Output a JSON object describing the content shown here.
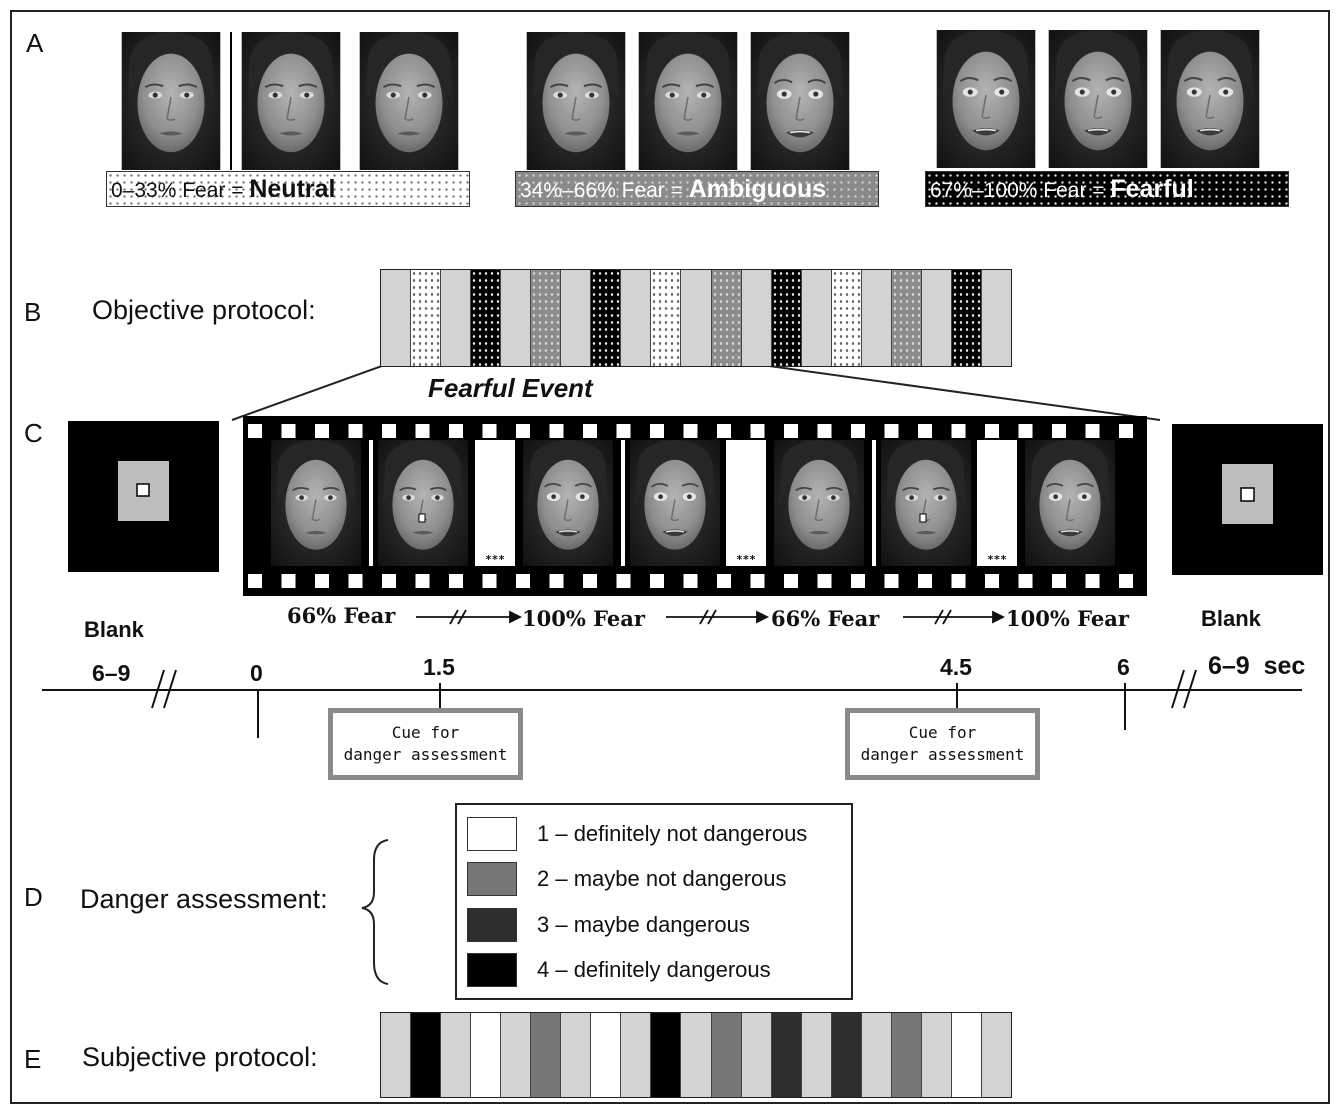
{
  "panel_letters": [
    "A",
    "B",
    "C",
    "D",
    "E"
  ],
  "panel_a": {
    "captions": [
      {
        "prefix": "0–33% Fear = ",
        "emphasis": "Neutral"
      },
      {
        "prefix": "34%–66% Fear = ",
        "emphasis": "Ambiguous"
      },
      {
        "prefix": "67%–100% Fear = ",
        "emphasis": "Fearful"
      }
    ]
  },
  "panel_b": {
    "label": "Objective protocol:",
    "sequence": [
      "neutral",
      "dots-white",
      "neutral",
      "dots-black",
      "neutral",
      "dots-gray",
      "neutral",
      "dots-black",
      "neutral",
      "dots-white",
      "neutral",
      "dots-gray",
      "neutral",
      "dots-black",
      "neutral",
      "dots-white",
      "neutral",
      "dots-gray",
      "neutral",
      "dots-black",
      "neutral"
    ],
    "event_label": "Fearful Event"
  },
  "panel_c": {
    "blank_left": "Blank",
    "blank_right": "Blank",
    "fear_labels": [
      "66% Fear",
      "100% Fear",
      "66% Fear",
      "100% Fear"
    ],
    "film_frame_dots": "***",
    "timeline": {
      "left_label": "6–9",
      "ticks": [
        "0",
        "1.5",
        "4.5",
        "6"
      ],
      "right_label": "6–9  sec"
    },
    "cues": [
      {
        "line1": "Cue for",
        "line2": "danger assessment"
      },
      {
        "line1": "Cue for",
        "line2": "danger assessment"
      }
    ]
  },
  "panel_d": {
    "label": "Danger assessment:",
    "legend": [
      {
        "text": "1 – definitely not dangerous",
        "color": "#ffffff"
      },
      {
        "text": "2 – maybe not dangerous",
        "color": "#777777"
      },
      {
        "text": "3 – maybe dangerous",
        "color": "#2e2e2e"
      },
      {
        "text": "4 – definitely dangerous",
        "color": "#000000"
      }
    ]
  },
  "panel_e": {
    "label": "Subjective protocol:",
    "sequence": [
      "neutral",
      "black",
      "neutral",
      "white",
      "neutral",
      "mid",
      "neutral",
      "white",
      "neutral",
      "black",
      "neutral",
      "mid",
      "neutral",
      "dark",
      "neutral",
      "dark",
      "neutral",
      "mid",
      "neutral",
      "white",
      "neutral"
    ]
  }
}
